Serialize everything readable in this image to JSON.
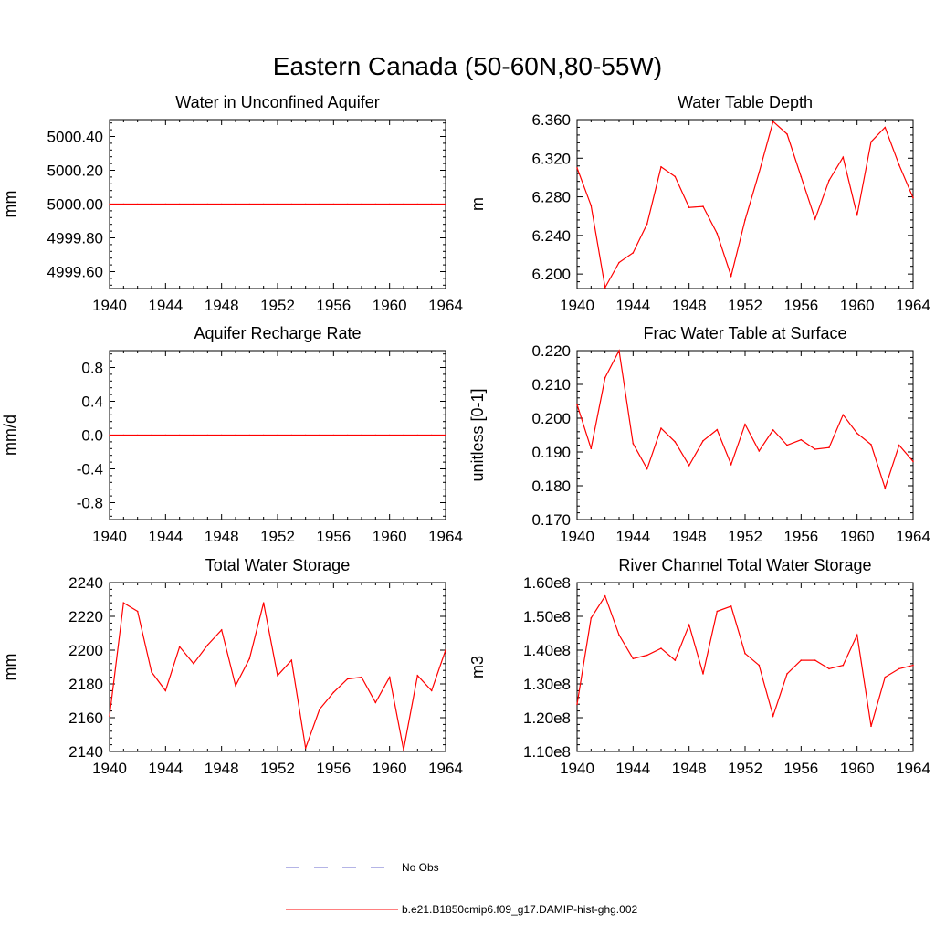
{
  "title": "Eastern Canada (50-60N,80-55W)",
  "colors": {
    "series": "#ff0000",
    "obs": "#6a6acd",
    "axis": "#000000"
  },
  "legend": [
    {
      "label": "No Obs",
      "style": "dashed",
      "color": "#6a6acd"
    },
    {
      "label": "b.e21.B1850cmip6.f09_g17.DAMIP-hist-ghg.002",
      "style": "solid",
      "color": "#ff0000"
    }
  ],
  "chart_data": [
    {
      "type": "line",
      "title": "Water in Unconfined Aquifer",
      "ylabel": "mm",
      "xlim": [
        1940,
        1964
      ],
      "ylim": [
        4999.5,
        5000.5
      ],
      "xticks": [
        1940,
        1944,
        1948,
        1952,
        1956,
        1960,
        1964
      ],
      "xtick_labels": [
        "1940",
        "1944",
        "1948",
        "1952",
        "1956",
        "1960",
        "1964"
      ],
      "yticks": [
        4999.6,
        4999.8,
        5000.0,
        5000.2,
        5000.4
      ],
      "ytick_labels": [
        "4999.60",
        "4999.80",
        "5000.00",
        "5000.20",
        "5000.40"
      ],
      "x": [
        1940,
        1941,
        1942,
        1943,
        1944,
        1945,
        1946,
        1947,
        1948,
        1949,
        1950,
        1951,
        1952,
        1953,
        1954,
        1955,
        1956,
        1957,
        1958,
        1959,
        1960,
        1961,
        1962,
        1963,
        1964
      ],
      "y": [
        5000,
        5000,
        5000,
        5000,
        5000,
        5000,
        5000,
        5000,
        5000,
        5000,
        5000,
        5000,
        5000,
        5000,
        5000,
        5000,
        5000,
        5000,
        5000,
        5000,
        5000,
        5000,
        5000,
        5000,
        5000
      ]
    },
    {
      "type": "line",
      "title": "Water Table Depth",
      "ylabel": "m",
      "xlim": [
        1940,
        1964
      ],
      "ylim": [
        6.185,
        6.36
      ],
      "xticks": [
        1940,
        1944,
        1948,
        1952,
        1956,
        1960,
        1964
      ],
      "xtick_labels": [
        "1940",
        "1944",
        "1948",
        "1952",
        "1956",
        "1960",
        "1964"
      ],
      "yticks": [
        6.2,
        6.24,
        6.28,
        6.32,
        6.36
      ],
      "ytick_labels": [
        "6.200",
        "6.240",
        "6.280",
        "6.320",
        "6.360"
      ],
      "x": [
        1940,
        1941,
        1942,
        1943,
        1944,
        1945,
        1946,
        1947,
        1948,
        1949,
        1950,
        1951,
        1952,
        1953,
        1954,
        1955,
        1956,
        1957,
        1958,
        1959,
        1960,
        1961,
        1962,
        1963,
        1964
      ],
      "y": [
        6.31,
        6.271,
        6.186,
        6.212,
        6.222,
        6.252,
        6.311,
        6.301,
        6.269,
        6.27,
        6.242,
        6.198,
        6.256,
        6.305,
        6.358,
        6.345,
        6.301,
        6.257,
        6.297,
        6.321,
        6.261,
        6.337,
        6.352,
        6.313,
        6.279
      ]
    },
    {
      "type": "line",
      "title": "Aquifer Recharge Rate",
      "ylabel": "mm/d",
      "xlim": [
        1940,
        1964
      ],
      "ylim": [
        -1.0,
        1.0
      ],
      "xticks": [
        1940,
        1944,
        1948,
        1952,
        1956,
        1960,
        1964
      ],
      "xtick_labels": [
        "1940",
        "1944",
        "1948",
        "1952",
        "1956",
        "1960",
        "1964"
      ],
      "yticks": [
        -0.8,
        -0.4,
        0.0,
        0.4,
        0.8
      ],
      "ytick_labels": [
        "-0.8",
        "-0.4",
        "0.0",
        "0.4",
        "0.8"
      ],
      "x": [
        1940,
        1941,
        1942,
        1943,
        1944,
        1945,
        1946,
        1947,
        1948,
        1949,
        1950,
        1951,
        1952,
        1953,
        1954,
        1955,
        1956,
        1957,
        1958,
        1959,
        1960,
        1961,
        1962,
        1963,
        1964
      ],
      "y": [
        0,
        0,
        0,
        0,
        0,
        0,
        0,
        0,
        0,
        0,
        0,
        0,
        0,
        0,
        0,
        0,
        0,
        0,
        0,
        0,
        0,
        0,
        0,
        0,
        0
      ]
    },
    {
      "type": "line",
      "title": "Frac Water Table at Surface",
      "ylabel": "unitless [0-1]",
      "xlim": [
        1940,
        1964
      ],
      "ylim": [
        0.17,
        0.22
      ],
      "xticks": [
        1940,
        1944,
        1948,
        1952,
        1956,
        1960,
        1964
      ],
      "xtick_labels": [
        "1940",
        "1944",
        "1948",
        "1952",
        "1956",
        "1960",
        "1964"
      ],
      "yticks": [
        0.17,
        0.18,
        0.19,
        0.2,
        0.21,
        0.22
      ],
      "ytick_labels": [
        "0.170",
        "0.180",
        "0.190",
        "0.200",
        "0.210",
        "0.220"
      ],
      "x": [
        1940,
        1941,
        1942,
        1943,
        1944,
        1945,
        1946,
        1947,
        1948,
        1949,
        1950,
        1951,
        1952,
        1953,
        1954,
        1955,
        1956,
        1957,
        1958,
        1959,
        1960,
        1961,
        1962,
        1963,
        1964
      ],
      "y": [
        0.204,
        0.191,
        0.212,
        0.22,
        0.1925,
        0.185,
        0.197,
        0.193,
        0.186,
        0.1933,
        0.1966,
        0.1863,
        0.1982,
        0.1903,
        0.1965,
        0.192,
        0.1936,
        0.1908,
        0.1913,
        0.201,
        0.1955,
        0.1922,
        0.1793,
        0.192,
        0.1872
      ]
    },
    {
      "type": "line",
      "title": "Total Water Storage",
      "ylabel": "mm",
      "xlim": [
        1940,
        1964
      ],
      "ylim": [
        2140,
        2240
      ],
      "xticks": [
        1940,
        1944,
        1948,
        1952,
        1956,
        1960,
        1964
      ],
      "xtick_labels": [
        "1940",
        "1944",
        "1948",
        "1952",
        "1956",
        "1960",
        "1964"
      ],
      "yticks": [
        2140,
        2160,
        2180,
        2200,
        2220,
        2240
      ],
      "ytick_labels": [
        "2140",
        "2160",
        "2180",
        "2200",
        "2220",
        "2240"
      ],
      "x": [
        1940,
        1941,
        1942,
        1943,
        1944,
        1945,
        1946,
        1947,
        1948,
        1949,
        1950,
        1951,
        1952,
        1953,
        1954,
        1955,
        1956,
        1957,
        1958,
        1959,
        1960,
        1961,
        1962,
        1963,
        1964
      ],
      "y": [
        2161,
        2228,
        2223,
        2187,
        2176,
        2202,
        2192,
        2203,
        2212,
        2179,
        2195,
        2228,
        2185,
        2194,
        2142,
        2165,
        2175,
        2183,
        2184,
        2169,
        2184,
        2141,
        2185,
        2176,
        2200
      ]
    },
    {
      "type": "line",
      "title": "River Channel Total Water Storage",
      "ylabel": "m3",
      "xlim": [
        1940,
        1964
      ],
      "ylim": [
        110000000,
        160000000
      ],
      "xticks": [
        1940,
        1944,
        1948,
        1952,
        1956,
        1960,
        1964
      ],
      "xtick_labels": [
        "1940",
        "1944",
        "1948",
        "1952",
        "1956",
        "1960",
        "1964"
      ],
      "yticks": [
        110000000,
        120000000,
        130000000,
        140000000,
        150000000,
        160000000
      ],
      "ytick_labels": [
        "1.10e8",
        "1.20e8",
        "1.30e8",
        "1.40e8",
        "1.50e8",
        "1.60e8"
      ],
      "x": [
        1940,
        1941,
        1942,
        1943,
        1944,
        1945,
        1946,
        1947,
        1948,
        1949,
        1950,
        1951,
        1952,
        1953,
        1954,
        1955,
        1956,
        1957,
        1958,
        1959,
        1960,
        1961,
        1962,
        1963,
        1964
      ],
      "y": [
        124000000,
        149500000,
        156000000,
        144500000,
        137500000,
        138500000,
        140500000,
        137000000,
        147500000,
        133000000,
        151500000,
        153000000,
        139000000,
        135500000,
        120500000,
        133000000,
        137000000,
        137000000,
        134500000,
        135500000,
        144500000,
        117500000,
        132000000,
        134500000,
        135500000
      ]
    }
  ]
}
